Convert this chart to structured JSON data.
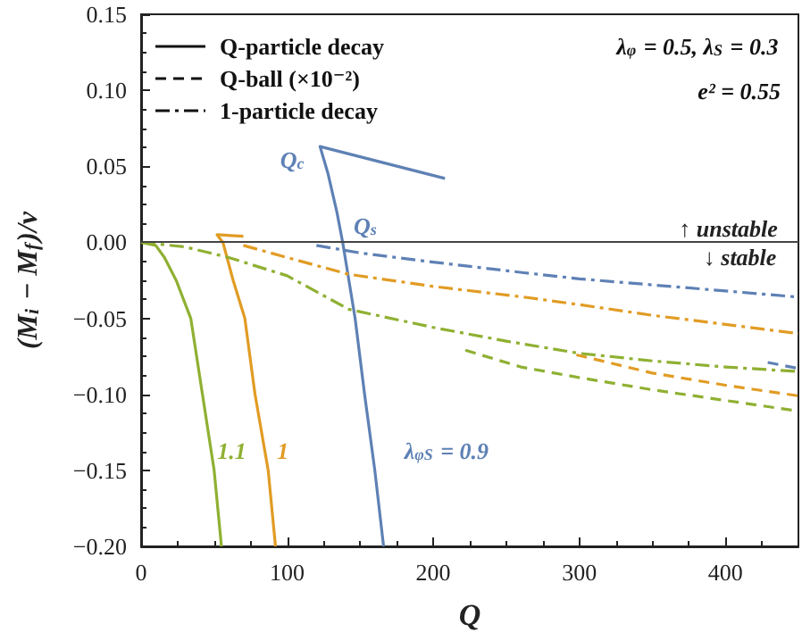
{
  "chart_data": {
    "type": "line",
    "xlabel": "Q",
    "ylabel": "(M$_{i}$ − M$_{f}$)/v",
    "xlim": [
      0,
      450
    ],
    "xticks": [
      0,
      100,
      200,
      300,
      400
    ],
    "ylim": [
      -0.2,
      0.15
    ],
    "yticks": [
      {
        "value": -0.2,
        "label": "−0.20"
      },
      {
        "value": -0.15,
        "label": "−0.15"
      },
      {
        "value": -0.1,
        "label": "−0.10"
      },
      {
        "value": -0.05,
        "label": "−0.05"
      },
      {
        "value": 0,
        "label": "0.00"
      },
      {
        "value": 0.05,
        "label": "0.05"
      },
      {
        "value": 0.1,
        "label": "0.10"
      },
      {
        "value": 0.15,
        "label": "0.15"
      }
    ],
    "grid": false,
    "marker": "none",
    "series": [
      {
        "color": "#5e81b5",
        "line_style": "solid",
        "x": [
          208,
          122.5,
          128,
          134,
          138,
          146.5,
          153,
          160,
          166
        ],
        "values": [
          0.042,
          0.063,
          0.045,
          0.02,
          0,
          -0.05,
          -0.1,
          -0.15,
          -0.2
        ]
      },
      {
        "color": "#e19c24",
        "line_style": "solid",
        "x": [
          70,
          52,
          56,
          63,
          71,
          78,
          87,
          92
        ],
        "values": [
          0.004,
          0.005,
          0,
          -0.025,
          -0.05,
          -0.1,
          -0.15,
          -0.2
        ]
      },
      {
        "color": "#8fb032",
        "line_style": "solid",
        "x": [
          0,
          10,
          16,
          24,
          34,
          42,
          50,
          55
        ],
        "values": [
          0,
          -0.002,
          -0.01,
          -0.025,
          -0.05,
          -0.1,
          -0.15,
          -0.2
        ]
      },
      {
        "color": "#5e81b5",
        "line_style": "dashed",
        "x": [
          429,
          450
        ],
        "values": [
          -0.079,
          -0.083
        ]
      },
      {
        "color": "#e19c24",
        "line_style": "dashed",
        "x": [
          298,
          350,
          400,
          450
        ],
        "values": [
          -0.074,
          -0.086,
          -0.094,
          -0.101
        ]
      },
      {
        "color": "#8fb032",
        "line_style": "dashed",
        "x": [
          222,
          260,
          300,
          350,
          400,
          450
        ],
        "values": [
          -0.071,
          -0.082,
          -0.089,
          -0.097,
          -0.104,
          -0.111
        ]
      },
      {
        "color": "#5e81b5",
        "line_style": "dashdot",
        "x": [
          120,
          150,
          200,
          262,
          300,
          350,
          400,
          450
        ],
        "values": [
          -0.002,
          -0.007,
          -0.013,
          -0.02,
          -0.024,
          -0.028,
          -0.032,
          -0.036
        ]
      },
      {
        "color": "#e19c24",
        "line_style": "dashdot",
        "x": [
          70,
          100,
          142,
          200,
          262,
          300,
          350,
          400,
          450
        ],
        "values": [
          -0.002,
          -0.01,
          -0.021,
          -0.029,
          -0.036,
          -0.041,
          -0.048,
          -0.054,
          -0.06
        ]
      },
      {
        "color": "#8fb032",
        "line_style": "dashdot",
        "x": [
          0,
          30,
          60,
          100,
          142,
          200,
          250,
          300,
          350,
          400,
          450
        ],
        "values": [
          0,
          -0.003,
          -0.01,
          -0.022,
          -0.044,
          -0.056,
          -0.065,
          -0.073,
          -0.078,
          -0.082,
          -0.085
        ]
      }
    ],
    "ref_lines": [
      {
        "axis": "y",
        "value": 0,
        "color": "#444444"
      }
    ],
    "annotations": [
      "Q-particle decay",
      "Q-ball (×10⁻²)",
      "1-particle decay",
      "λ$_{φ}$ = 0.5, λ$_{S}$ = 0.3",
      "e² = 0.55",
      "Q$_{c}$",
      "Q$_{s}$",
      "λ$_{φS}$ = 0.9",
      "1.1",
      "1",
      "↑ unstable",
      "↓ stable"
    ]
  }
}
